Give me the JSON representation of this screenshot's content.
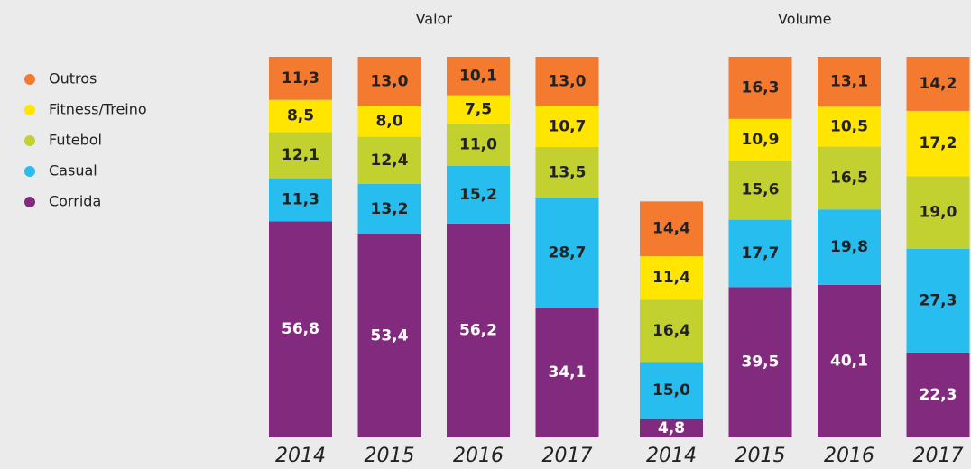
{
  "chart_data": [
    {
      "type": "bar",
      "stacked": true,
      "title": "Valor",
      "categories": [
        "2014",
        "2015",
        "2016",
        "2017"
      ],
      "ylim": [
        0,
        100
      ],
      "series": [
        {
          "name": "Corrida",
          "color": "#822a7e",
          "values": [
            56.8,
            53.4,
            56.2,
            34.1
          ],
          "value_labels": [
            "56,8",
            "53,4",
            "56,2",
            "34,1"
          ]
        },
        {
          "name": "Casual",
          "color": "#27bdee",
          "values": [
            11.3,
            13.2,
            15.2,
            28.7
          ],
          "value_labels": [
            "11,3",
            "13,2",
            "15,2",
            "28,7"
          ]
        },
        {
          "name": "Futebol",
          "color": "#c2d130",
          "values": [
            12.1,
            12.4,
            11.0,
            13.5
          ],
          "value_labels": [
            "12,1",
            "12,4",
            "11,0",
            "13,5"
          ]
        },
        {
          "name": "Fitness/Treino",
          "color": "#ffe500",
          "values": [
            8.5,
            8.0,
            7.5,
            10.7
          ],
          "value_labels": [
            "8,5",
            "8,0",
            "7,5",
            "10,7"
          ]
        },
        {
          "name": "Outros",
          "color": "#f47a30",
          "values": [
            11.3,
            13.0,
            10.1,
            13.0
          ],
          "value_labels": [
            "11,3",
            "13,0",
            "10,1",
            "13,0"
          ]
        }
      ]
    },
    {
      "type": "bar",
      "stacked": true,
      "title": "Volume",
      "categories": [
        "2014",
        "2015",
        "2016",
        "2017"
      ],
      "ylim": [
        0,
        100
      ],
      "series": [
        {
          "values": [
            4.8,
            39.5,
            40.1,
            22.3
          ],
          "value_labels": [
            "4,8",
            "39,5",
            "40,1",
            "22,3"
          ]
        },
        {
          "values": [
            15.0,
            17.7,
            19.8,
            27.3
          ],
          "value_labels": [
            "15,0",
            "17,7",
            "19,8",
            "27,3"
          ]
        },
        {
          "values": [
            16.4,
            15.6,
            16.5,
            19.0
          ],
          "value_labels": [
            "16,4",
            "15,6",
            "16,5",
            "19,0"
          ]
        },
        {
          "values": [
            11.4,
            10.9,
            10.5,
            17.2
          ],
          "value_labels": [
            "11,4",
            "10,9",
            "10,5",
            "17,2"
          ]
        },
        {
          "values": [
            14.4,
            16.3,
            13.1,
            14.2
          ],
          "value_labels": [
            "14,4",
            "16,3",
            "13,1",
            "14,2"
          ]
        }
      ]
    }
  ]
}
